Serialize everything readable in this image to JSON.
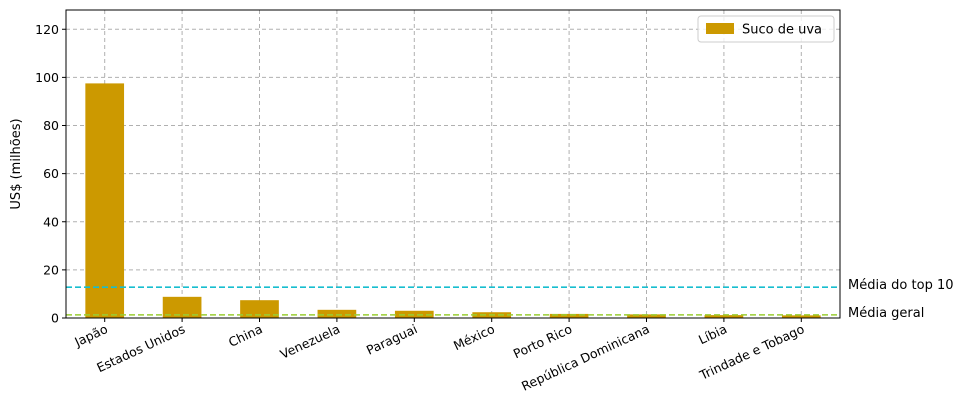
{
  "chart_data": {
    "type": "bar",
    "title": "",
    "xlabel": "",
    "ylabel": "US$ (milhões)",
    "categories": [
      "Japão",
      "Estados Unidos",
      "China",
      "Venezuela",
      "Paraguai",
      "México",
      "Porto Rico",
      "República Dominicana",
      "Líbia",
      "Trindade e Tobago"
    ],
    "series": [
      {
        "name": "Suco de uva",
        "color": "#cc9900",
        "values": [
          97.5,
          8.8,
          7.4,
          3.4,
          3.0,
          2.4,
          1.7,
          1.5,
          1.2,
          1.1
        ]
      }
    ],
    "ylim": [
      0,
      128
    ],
    "yticks": [
      0,
      20,
      40,
      60,
      80,
      100,
      120
    ],
    "grid": true,
    "legend_position": "top-right",
    "reference_lines": [
      {
        "label": "Média do top 10",
        "value": 12.8,
        "color": "#17becf"
      },
      {
        "label": "Média geral",
        "value": 1.3,
        "color": "#9acd32"
      }
    ]
  }
}
